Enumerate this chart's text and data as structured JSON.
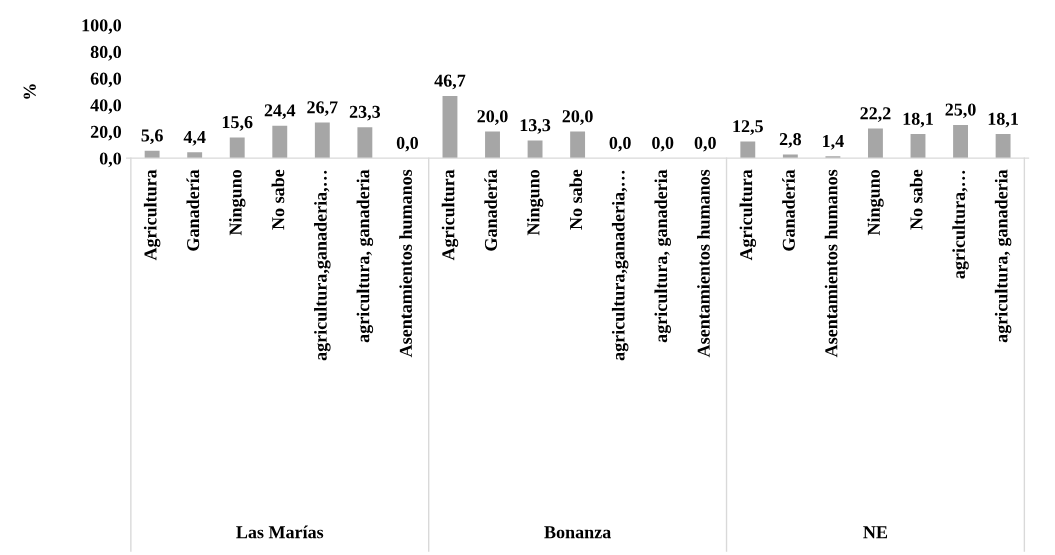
{
  "chart_data": {
    "type": "bar",
    "ylabel": "%",
    "categories": [
      "Agricultura",
      "Ganadería",
      "Ninguno",
      "No sabe",
      "agricultura,ganaderia,…",
      "agricultura, ganaderia",
      "Asentamientos humanos",
      "Agricultura",
      "Ganadería",
      "Ninguno",
      "No sabe",
      "agricultura,ganaderia,…",
      "agricultura, ganaderia",
      "Asentamientos humanos",
      "Agricultura",
      "Ganadería",
      "Asentamientos humanos",
      "Ninguno",
      "No sabe",
      "agricultura,…",
      "agricultura, ganaderia"
    ],
    "values": [
      5.6,
      4.4,
      15.6,
      24.4,
      26.7,
      23.3,
      0.0,
      46.7,
      20.0,
      13.3,
      20.0,
      0.0,
      0.0,
      0.0,
      12.5,
      2.8,
      1.4,
      22.2,
      18.1,
      25.0,
      18.1
    ],
    "value_labels": [
      "5,6",
      "4,4",
      "15,6",
      "24,4",
      "26,7",
      "23,3",
      "0,0",
      "46,7",
      "20,0",
      "13,3",
      "20,0",
      "0,0",
      "0,0",
      "0,0",
      "12,5",
      "2,8",
      "1,4",
      "22,2",
      "18,1",
      "25,0",
      "18,1"
    ],
    "color": "#a6a6a6",
    "annotations": [
      "Las Marías",
      "Bonanza",
      "NE"
    ],
    "ylim": [
      0,
      100
    ],
    "yticks": [
      {
        "value": 0,
        "label": "0,0"
      },
      {
        "value": 20,
        "label": "20,0"
      },
      {
        "value": 40,
        "label": "40,0"
      },
      {
        "value": 60,
        "label": "60,0"
      },
      {
        "value": 80,
        "label": "80,0"
      },
      {
        "value": 100,
        "label": "100,0"
      }
    ],
    "grid": false,
    "legend": false
  }
}
